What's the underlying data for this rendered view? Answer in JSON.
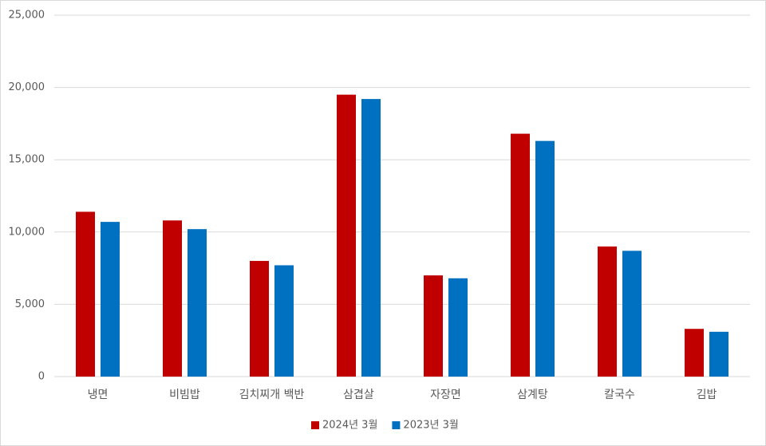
{
  "chart_data": {
    "type": "bar",
    "categories": [
      "냉면",
      "비빔밥",
      "김치찌개 백반",
      "삼겹살",
      "자장면",
      "삼계탕",
      "칼국수",
      "김밥"
    ],
    "series": [
      {
        "name": "2024년 3월",
        "color": "#c00000",
        "values": [
          11400,
          10800,
          8000,
          19500,
          7000,
          16800,
          9000,
          3300
        ]
      },
      {
        "name": "2023년 3월",
        "color": "#0070c0",
        "values": [
          10700,
          10200,
          7700,
          19200,
          6800,
          16300,
          8700,
          3100
        ]
      }
    ],
    "ylim": [
      0,
      25000
    ],
    "yticks": [
      0,
      {
        "value": 5000,
        "label": "5,000"
      },
      {
        "value": 10000,
        "label": "10,000"
      },
      {
        "value": 15000,
        "label": "15,000"
      },
      {
        "value": 20000,
        "label": "20,000"
      },
      {
        "value": 25000,
        "label": "25,000"
      }
    ],
    "grid": true,
    "legend": "bottom"
  }
}
